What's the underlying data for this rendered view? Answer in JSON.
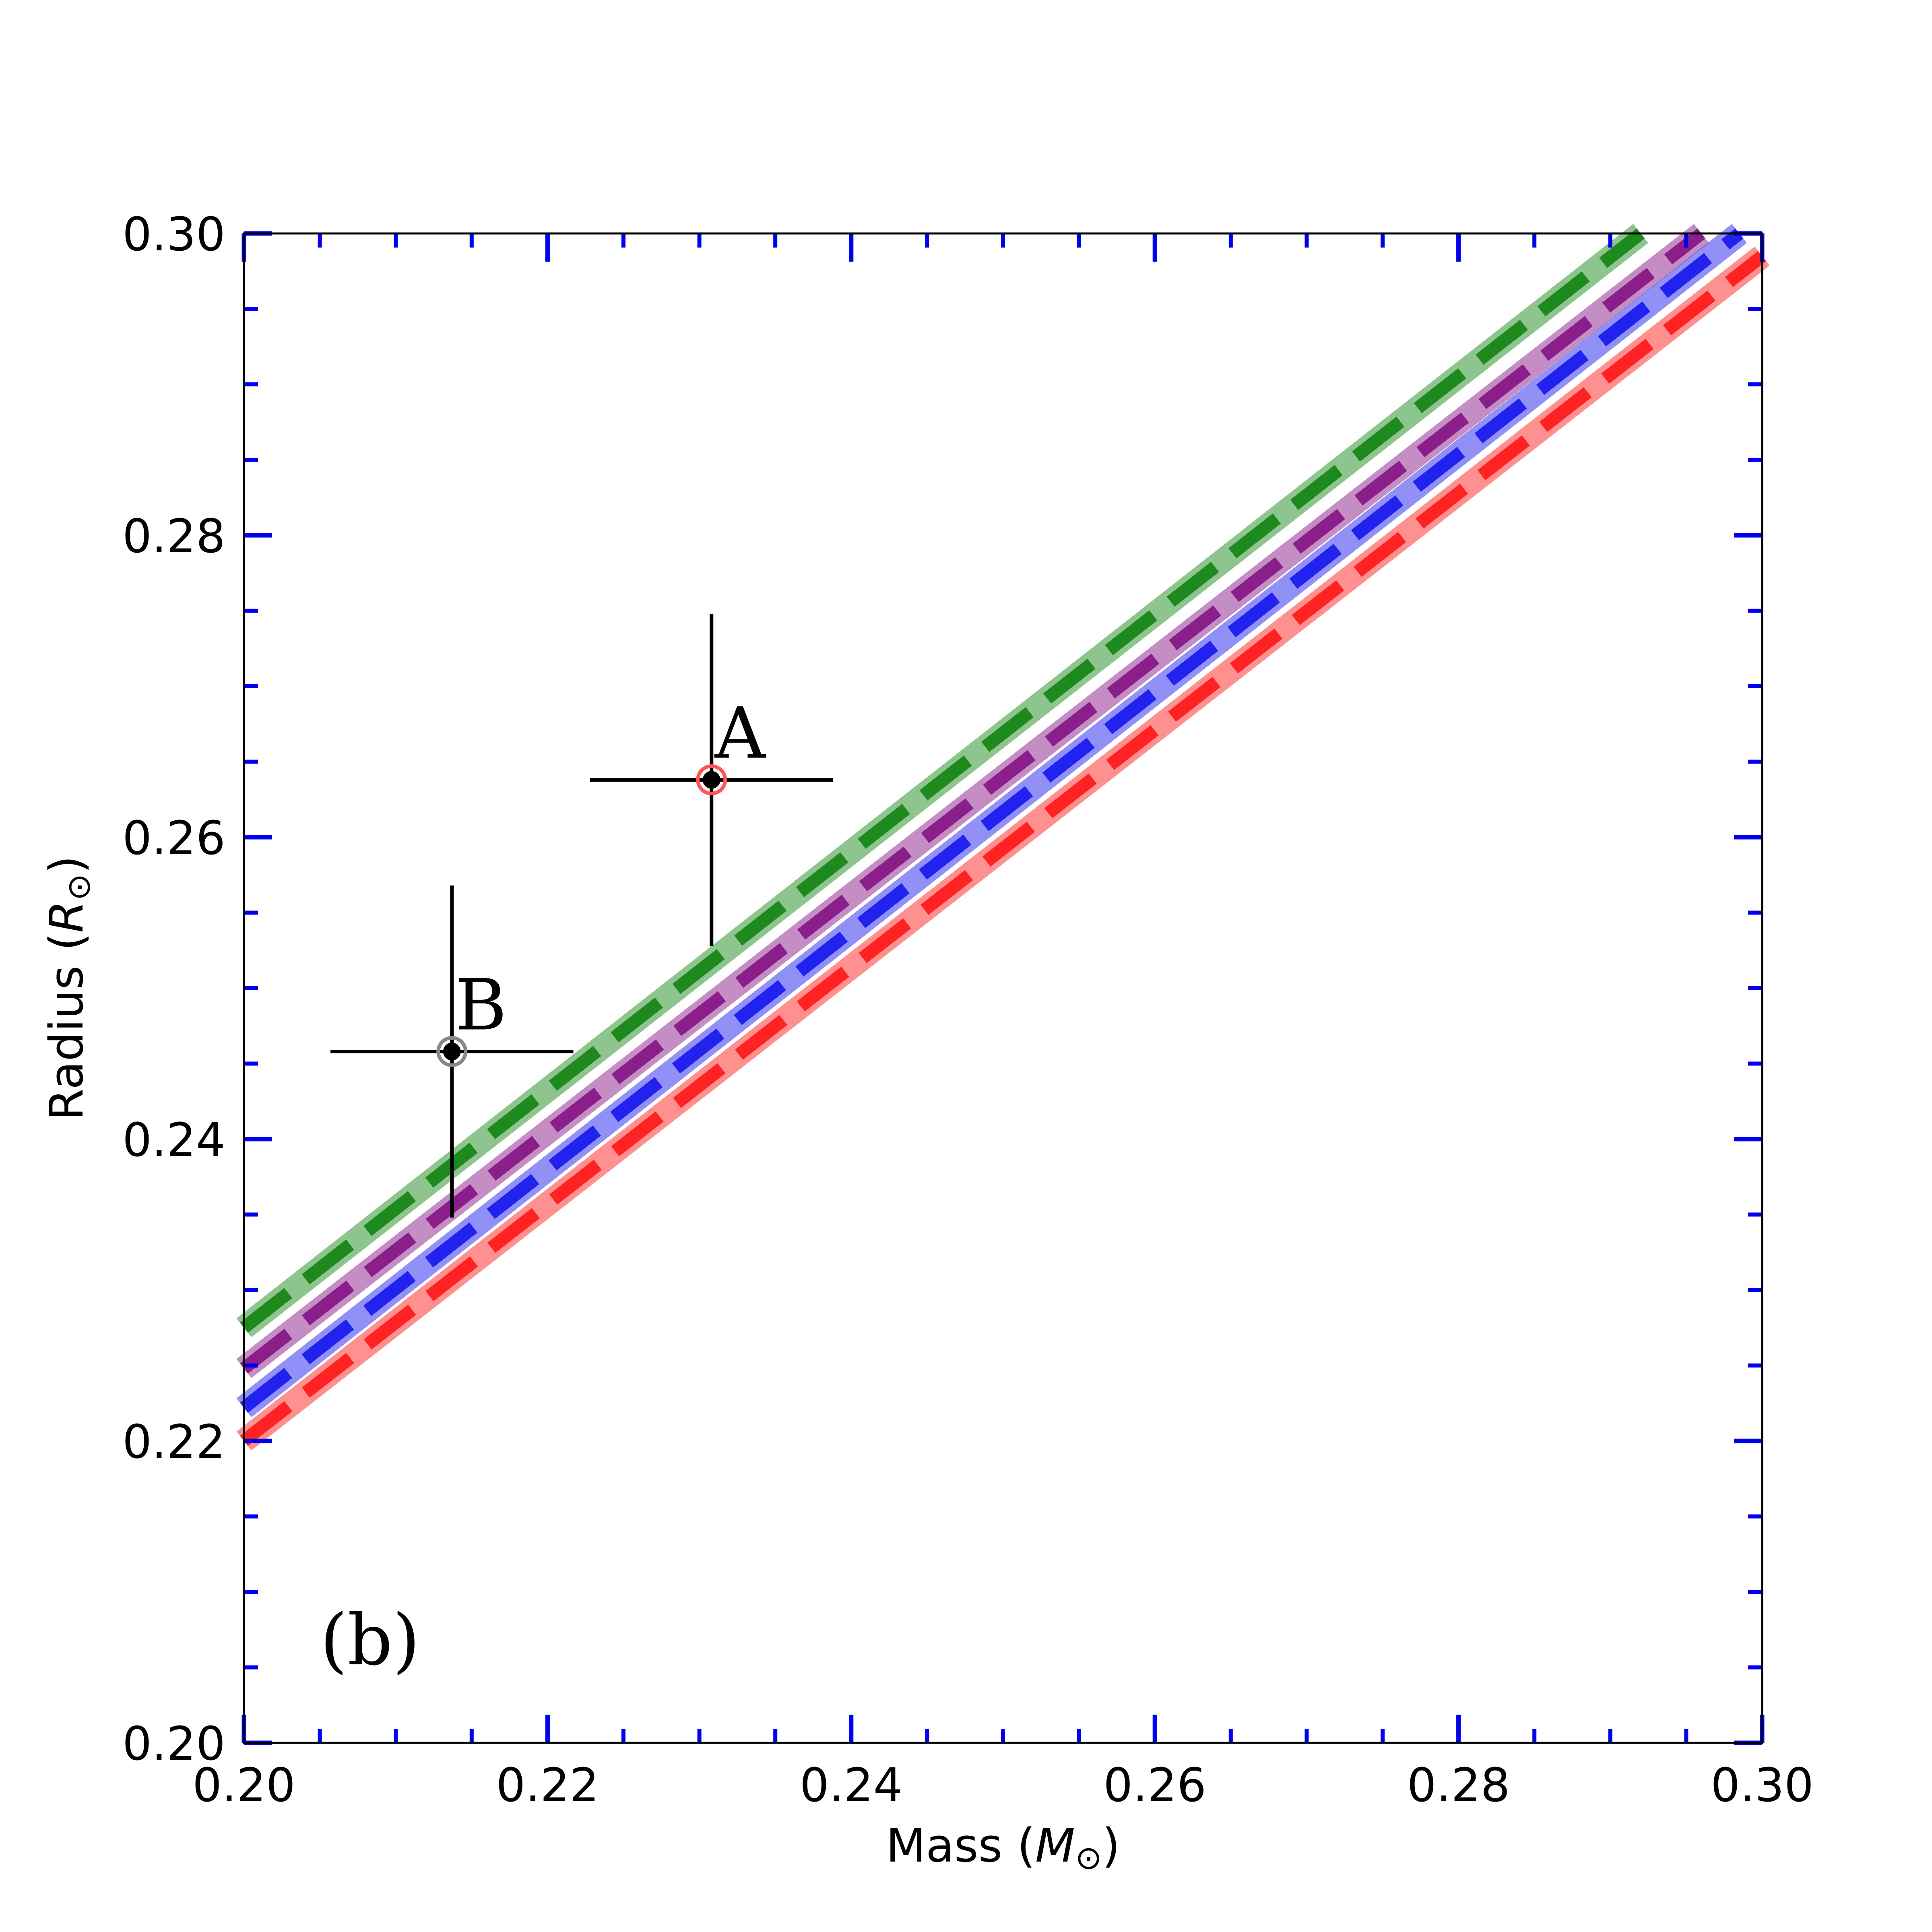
{
  "chart_data": {
    "type": "line",
    "panel_label": "(b)",
    "xlabel": {
      "text": "Mass (",
      "symbol": "M",
      "subscript": "⊙",
      "close": ")"
    },
    "ylabel": {
      "text": "Radius (",
      "symbol": "R",
      "subscript": "⊙",
      "close": ")"
    },
    "xlim": [
      0.2,
      0.3
    ],
    "ylim": [
      0.2,
      0.3
    ],
    "x_ticks": [
      "0.20",
      "0.22",
      "0.24",
      "0.26",
      "0.28",
      "0.30"
    ],
    "y_ticks": [
      "0.20",
      "0.22",
      "0.24",
      "0.26",
      "0.28",
      "0.30"
    ],
    "minor_tick_step": 0.005,
    "tick_color": "#0000ee",
    "series": [
      {
        "name": "green model",
        "color": "#1e8a1e",
        "x": [
          0.2,
          0.292
        ],
        "y": [
          0.2275,
          0.3
        ]
      },
      {
        "name": "purple model",
        "color": "#8a1e8a",
        "x": [
          0.2,
          0.296
        ],
        "y": [
          0.2248,
          0.3
        ]
      },
      {
        "name": "blue model",
        "color": "#2222ee",
        "x": [
          0.2,
          0.2985
        ],
        "y": [
          0.2222,
          0.3
        ]
      },
      {
        "name": "red model",
        "color": "#ff2222",
        "x": [
          0.2,
          0.3
        ],
        "y": [
          0.22,
          0.2985
        ]
      }
    ],
    "points": [
      {
        "label": "A",
        "x": 0.2308,
        "y": 0.2638,
        "xerr": 0.008,
        "yerr": 0.011,
        "ring_color": "#ff5555"
      },
      {
        "label": "B",
        "x": 0.2137,
        "y": 0.2458,
        "xerr": 0.008,
        "yerr": 0.011,
        "ring_color": "#888888"
      }
    ]
  }
}
